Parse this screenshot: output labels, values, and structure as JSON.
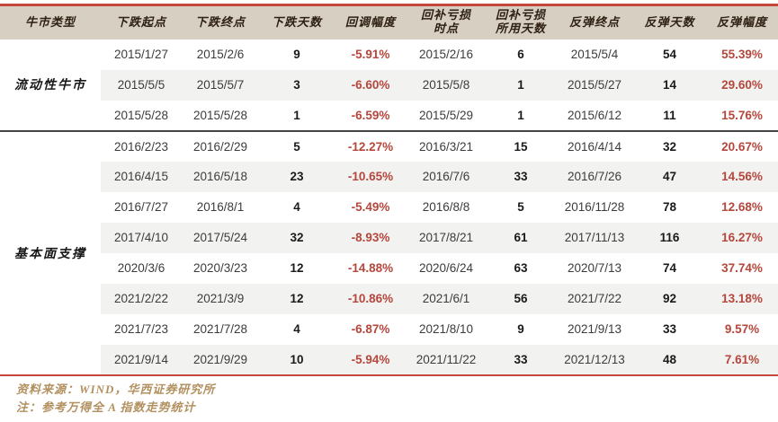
{
  "colors": {
    "accent-red": "#c8473c",
    "header-bg": "#d7cfc2",
    "header-text": "#2e2012",
    "stripe-bg": "#f2f2f1",
    "pct-red": "#b5473c",
    "date-text": "#3c3c3c",
    "days-text": "#1a1a1a",
    "divider": "#454545",
    "footer-text": "#b2905f"
  },
  "table": {
    "headers": [
      "牛市类型",
      "下跌起点",
      "下跌终点",
      "下跌天数",
      "回调幅度",
      "回补亏损\n时点",
      "回补亏损\n所用天数",
      "反弹终点",
      "反弹天数",
      "反弹幅度"
    ],
    "cell_names": [
      "decline-start-date",
      "decline-end-date",
      "decline-days",
      "pullback-percent",
      "loss-recovery-date",
      "loss-recovery-days",
      "rebound-end-date",
      "rebound-days",
      "rebound-percent"
    ],
    "cell_classes": [
      "cell-date",
      "cell-date",
      "cell-days",
      "cell-pct",
      "cell-date",
      "cell-days",
      "cell-date",
      "cell-days",
      "cell-pct"
    ],
    "groups": [
      {
        "type": "流动性牛市",
        "rows": [
          [
            "2015/1/27",
            "2015/2/6",
            "9",
            "-5.91%",
            "2015/2/16",
            "6",
            "2015/5/4",
            "54",
            "55.39%"
          ],
          [
            "2015/5/5",
            "2015/5/7",
            "3",
            "-6.60%",
            "2015/5/8",
            "1",
            "2015/5/27",
            "14",
            "29.60%"
          ],
          [
            "2015/5/28",
            "2015/5/28",
            "1",
            "-6.59%",
            "2015/5/29",
            "1",
            "2015/6/12",
            "11",
            "15.76%"
          ]
        ]
      },
      {
        "type": "基本面支撑",
        "rows": [
          [
            "2016/2/23",
            "2016/2/29",
            "5",
            "-12.27%",
            "2016/3/21",
            "15",
            "2016/4/14",
            "32",
            "20.67%"
          ],
          [
            "2016/4/15",
            "2016/5/18",
            "23",
            "-10.65%",
            "2016/7/6",
            "33",
            "2016/7/26",
            "47",
            "14.56%"
          ],
          [
            "2016/7/27",
            "2016/8/1",
            "4",
            "-5.49%",
            "2016/8/8",
            "5",
            "2016/11/28",
            "78",
            "12.68%"
          ],
          [
            "2017/4/10",
            "2017/5/24",
            "32",
            "-8.93%",
            "2017/8/21",
            "61",
            "2017/11/13",
            "116",
            "16.27%"
          ],
          [
            "2020/3/6",
            "2020/3/23",
            "12",
            "-14.88%",
            "2020/6/24",
            "63",
            "2020/7/13",
            "74",
            "37.74%"
          ],
          [
            "2021/2/22",
            "2021/3/9",
            "12",
            "-10.86%",
            "2021/6/1",
            "56",
            "2021/7/22",
            "92",
            "13.18%"
          ],
          [
            "2021/7/23",
            "2021/7/28",
            "4",
            "-6.87%",
            "2021/8/10",
            "9",
            "2021/9/13",
            "33",
            "9.57%"
          ],
          [
            "2021/9/14",
            "2021/9/29",
            "10",
            "-5.94%",
            "2021/11/22",
            "33",
            "2021/12/13",
            "48",
            "7.61%"
          ]
        ]
      }
    ]
  },
  "footer": {
    "source": "资料来源：WIND，华西证券研究所",
    "note": "注：参考万得全 A 指数走势统计"
  }
}
